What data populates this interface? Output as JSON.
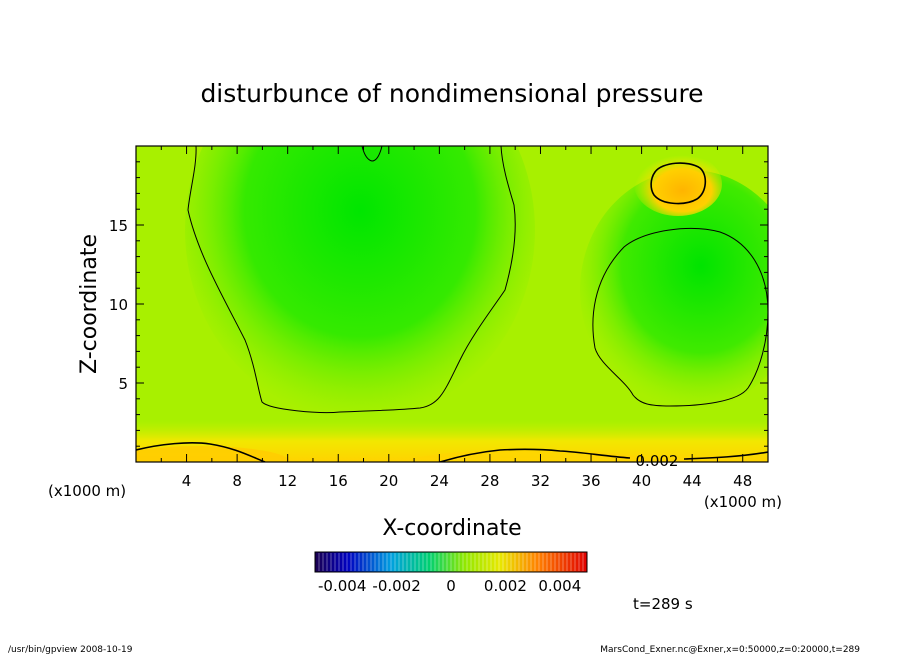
{
  "chart_data": {
    "type": "heatmap",
    "title": "disturbunce of nondimensional pressure",
    "xlabel": "X-coordinate",
    "ylabel": "Z-coordinate",
    "x_unit_left": "(x1000 m)",
    "x_unit_right": "(x1000 m)",
    "xlim": [
      0,
      50
    ],
    "ylim": [
      0,
      20
    ],
    "x_ticks": [
      4,
      8,
      12,
      16,
      20,
      24,
      28,
      32,
      36,
      40,
      44,
      48
    ],
    "x_tick_labels": [
      "4",
      "8",
      "12",
      "16",
      "20",
      "24",
      "28",
      "32",
      "36",
      "40",
      "44",
      "48"
    ],
    "y_ticks": [
      5,
      10,
      15
    ],
    "y_tick_labels": [
      "5",
      "10",
      "15"
    ],
    "contour_label": {
      "text": "0.002",
      "x": 41.5,
      "z": 0.2
    },
    "colorbar": {
      "min": -0.005,
      "max": 0.005,
      "tick_values": [
        -0.004,
        -0.002,
        0,
        0.002,
        0.004
      ],
      "tick_labels": [
        "-0.004",
        "-0.002",
        "0",
        "0.002",
        "0.004"
      ]
    },
    "time_label": "t=289 s",
    "features": [
      {
        "name": "green-column-low",
        "x": 18,
        "z": 14,
        "value": -0.0015
      },
      {
        "name": "green-cell-right",
        "x": 44,
        "z": 12.5,
        "value": -0.0012
      },
      {
        "name": "orange-cell-top-right",
        "x": 42.5,
        "z": 17.5,
        "value": 0.003
      },
      {
        "name": "surface-warm-band",
        "x": 4,
        "z": 0.5,
        "value": 0.0025
      }
    ]
  },
  "footer": {
    "left": "/usr/bin/gpview   2008-10-19",
    "right": "MarsCond_Exner.nc@Exner,x=0:50000,z=0:20000,t=289"
  },
  "colors": {
    "field_base": "#a6f000",
    "green_low": "#00e600",
    "orange_high": "#ffc000",
    "contour": "#000000"
  }
}
